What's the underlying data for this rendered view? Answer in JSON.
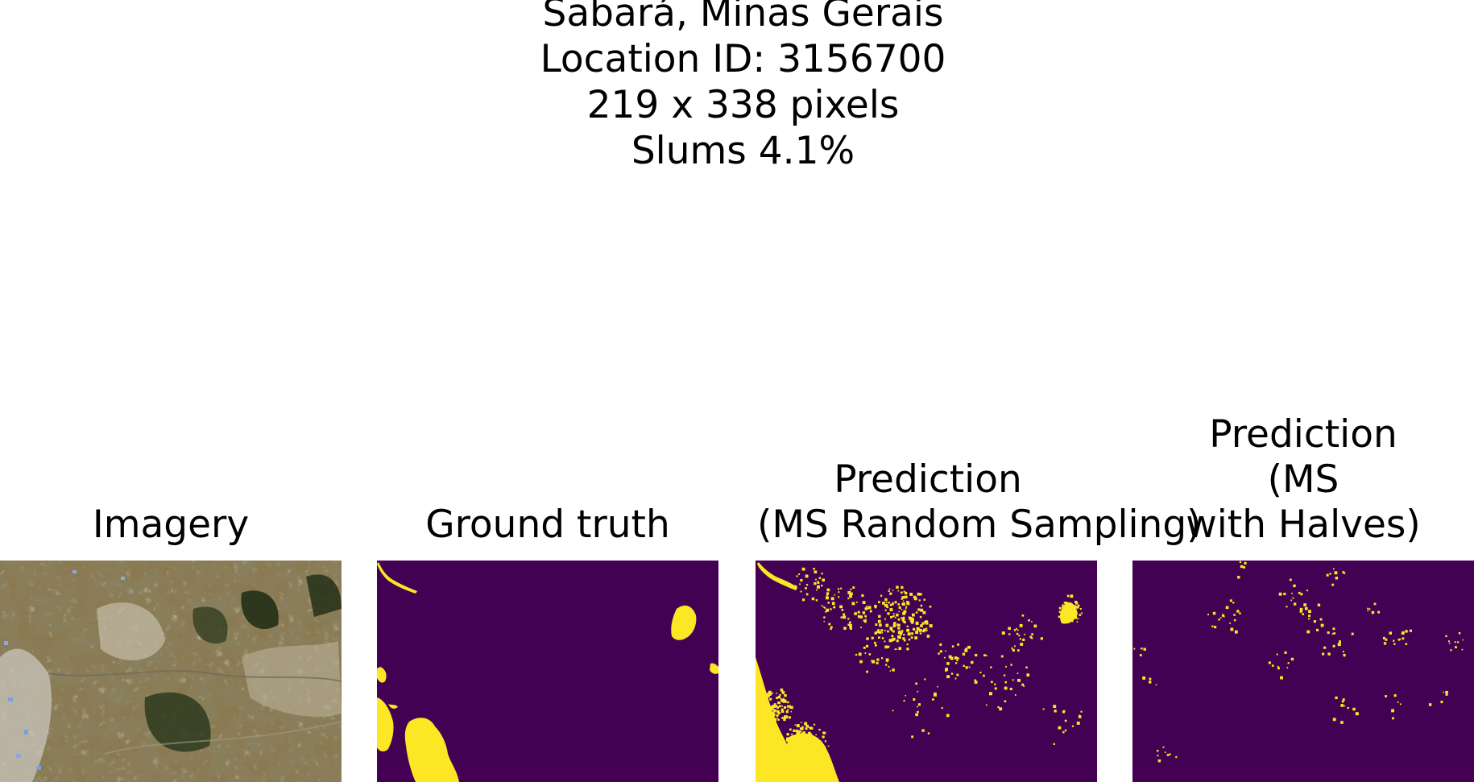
{
  "figure": {
    "title_lines": [
      "Sabará, Minas Gerais",
      "Location ID: 3156700",
      "219 x 338 pixels",
      "Slums 4.1%"
    ]
  },
  "panels": [
    {
      "id": "imagery",
      "title_lines": [
        "Imagery"
      ]
    },
    {
      "id": "ground-truth",
      "title_lines": [
        "Ground truth"
      ]
    },
    {
      "id": "pred-random",
      "title_lines": [
        "Prediction",
        "(MS Random Sampling)"
      ]
    },
    {
      "id": "pred-halves",
      "title_lines": [
        "Prediction",
        "(MS",
        "with Halves)"
      ]
    }
  ],
  "colors": {
    "background_class": "#440154",
    "slum_class": "#fde725",
    "imagery_base": "#8a7a52"
  }
}
